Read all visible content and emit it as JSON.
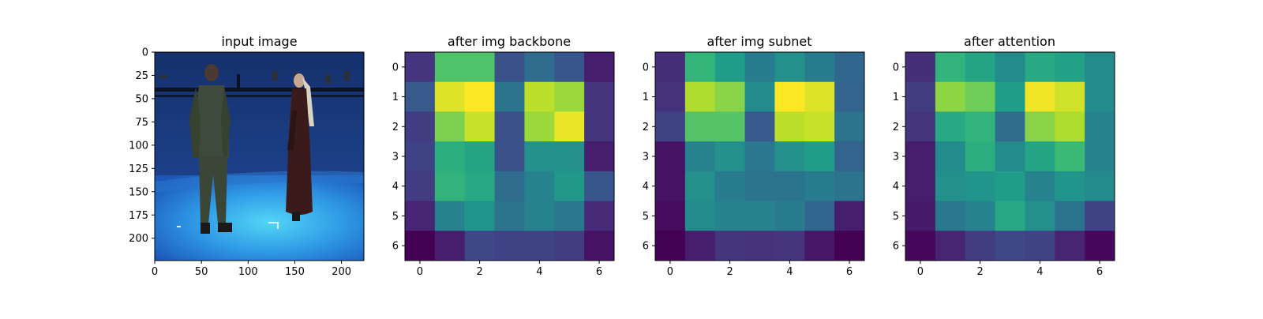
{
  "chart_data": [
    {
      "type": "image",
      "title": "input image",
      "xlim": [
        0,
        224
      ],
      "ylim": [
        224,
        0
      ],
      "xticks": [
        0,
        50,
        100,
        150,
        200
      ],
      "yticks": [
        0,
        25,
        50,
        75,
        100,
        125,
        150,
        175,
        200
      ],
      "image": {
        "description": "photo of a man and a woman standing on a blue studio floor",
        "background_color": "#1d3f86",
        "floor_color": "#2f8fe0",
        "highlight_color": "#4fd0f5"
      }
    },
    {
      "type": "heatmap",
      "title": "after img backbone",
      "colormap": "viridis",
      "xticks": [
        0,
        2,
        4,
        6
      ],
      "yticks": [
        0,
        1,
        2,
        3,
        4,
        5,
        6
      ],
      "values": [
        [
          0.15,
          0.72,
          0.72,
          0.25,
          0.35,
          0.27,
          0.08
        ],
        [
          0.28,
          0.95,
          1.0,
          0.38,
          0.9,
          0.85,
          0.15
        ],
        [
          0.18,
          0.8,
          0.92,
          0.25,
          0.85,
          0.97,
          0.15
        ],
        [
          0.2,
          0.62,
          0.58,
          0.25,
          0.5,
          0.5,
          0.08
        ],
        [
          0.18,
          0.65,
          0.6,
          0.35,
          0.45,
          0.53,
          0.27
        ],
        [
          0.1,
          0.45,
          0.52,
          0.38,
          0.45,
          0.4,
          0.12
        ],
        [
          0.0,
          0.08,
          0.22,
          0.2,
          0.2,
          0.18,
          0.05
        ]
      ]
    },
    {
      "type": "heatmap",
      "title": "after img subnet",
      "colormap": "viridis",
      "xticks": [
        0,
        2,
        4,
        6
      ],
      "yticks": [
        0,
        1,
        2,
        3,
        4,
        5,
        6
      ],
      "values": [
        [
          0.13,
          0.66,
          0.55,
          0.42,
          0.5,
          0.42,
          0.33
        ],
        [
          0.14,
          0.88,
          0.82,
          0.48,
          1.0,
          0.95,
          0.32
        ],
        [
          0.2,
          0.73,
          0.73,
          0.28,
          0.9,
          0.92,
          0.38
        ],
        [
          0.05,
          0.45,
          0.5,
          0.4,
          0.5,
          0.55,
          0.32
        ],
        [
          0.05,
          0.5,
          0.42,
          0.38,
          0.38,
          0.42,
          0.38
        ],
        [
          0.03,
          0.48,
          0.45,
          0.45,
          0.42,
          0.33,
          0.08
        ],
        [
          0.0,
          0.08,
          0.15,
          0.14,
          0.15,
          0.06,
          0.0
        ]
      ]
    },
    {
      "type": "heatmap",
      "title": "after attention",
      "colormap": "viridis",
      "xticks": [
        0,
        2,
        4,
        6
      ],
      "yticks": [
        0,
        1,
        2,
        3,
        4,
        5,
        6
      ],
      "values": [
        [
          0.13,
          0.65,
          0.58,
          0.48,
          0.6,
          0.57,
          0.48
        ],
        [
          0.18,
          0.83,
          0.78,
          0.55,
          0.98,
          0.93,
          0.48
        ],
        [
          0.15,
          0.6,
          0.65,
          0.35,
          0.82,
          0.88,
          0.45
        ],
        [
          0.08,
          0.48,
          0.62,
          0.48,
          0.58,
          0.68,
          0.45
        ],
        [
          0.08,
          0.5,
          0.52,
          0.55,
          0.45,
          0.52,
          0.48
        ],
        [
          0.07,
          0.4,
          0.45,
          0.6,
          0.5,
          0.38,
          0.2
        ],
        [
          0.02,
          0.1,
          0.18,
          0.22,
          0.2,
          0.1,
          0.02
        ]
      ]
    }
  ]
}
